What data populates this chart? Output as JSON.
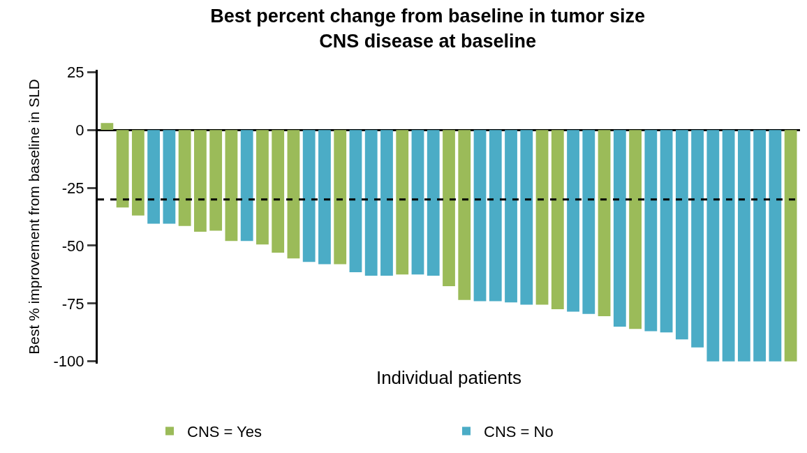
{
  "chart_data": {
    "type": "bar",
    "title": "Best percent change from baseline in tumor size\nCNS disease at baseline",
    "xlabel": "Individual patients",
    "ylabel": "Best % improvement from baseline in SLD",
    "categories": [
      null,
      null,
      null,
      null,
      null,
      null,
      null,
      null,
      null,
      null,
      null,
      null,
      null,
      null,
      null,
      null,
      null,
      null,
      null,
      null,
      null,
      null,
      null,
      null,
      null,
      null,
      null,
      null,
      null,
      null,
      null,
      null,
      null,
      null,
      null,
      null,
      null,
      null,
      null,
      null,
      null,
      null,
      null,
      null,
      null
    ],
    "series": [
      {
        "name": "CNS = Yes",
        "color": "#9bbb59",
        "values": [
          3,
          -33.5,
          -37,
          null,
          null,
          -41.5,
          -44,
          -43.5,
          -48,
          null,
          -49.5,
          -53,
          -55.5,
          null,
          null,
          -58,
          null,
          null,
          null,
          -62.5,
          null,
          null,
          -67.5,
          -73.5,
          null,
          null,
          null,
          null,
          -75.5,
          -77.5,
          null,
          null,
          -80.5,
          null,
          -86,
          null,
          null,
          null,
          null,
          null,
          null,
          null,
          null,
          null,
          -100
        ]
      },
      {
        "name": "CNS = No",
        "color": "#4bacc6",
        "values": [
          null,
          null,
          null,
          -40.5,
          -40.5,
          null,
          null,
          null,
          null,
          -48,
          null,
          null,
          null,
          -57,
          -58,
          null,
          -61.5,
          -63,
          -63,
          null,
          -62.5,
          -63,
          null,
          null,
          -74,
          -74,
          -74.5,
          -75.5,
          null,
          null,
          -78.5,
          -79.5,
          null,
          -85,
          null,
          -87,
          -87.5,
          -90.5,
          -94,
          -100,
          -100,
          -100,
          -100,
          -100,
          null
        ]
      }
    ],
    "ylim": [
      -101,
      26
    ],
    "yticks": [
      25,
      0,
      -25,
      -50,
      -75,
      -100
    ],
    "legend": "bottom",
    "ref_lines": [
      {
        "axis": "y",
        "value": -30,
        "color": "#000000",
        "line_style": "dashed"
      }
    ]
  }
}
